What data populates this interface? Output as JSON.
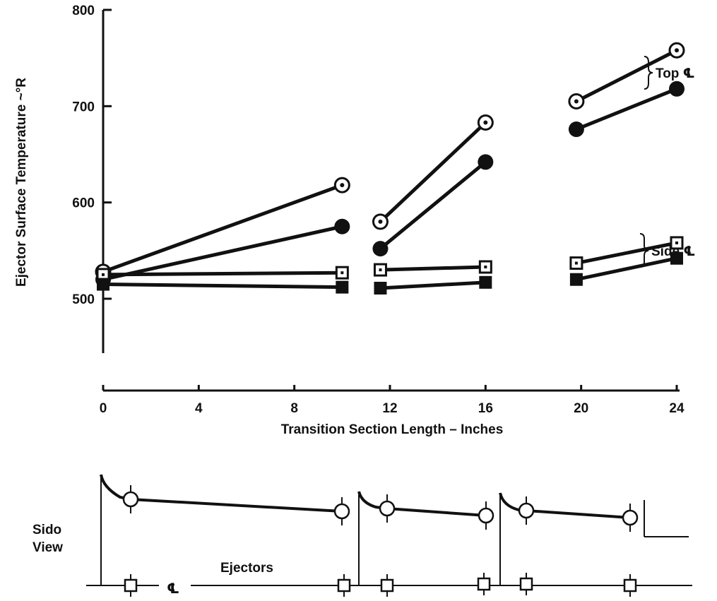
{
  "chart_data": {
    "type": "line",
    "xlabel": "Transition Section Length  – Inches",
    "ylabel": "Ejector Surface Temperature ~°R",
    "xlim": [
      0,
      24
    ],
    "ylim": [
      500,
      800
    ],
    "x_ticks": [
      "0",
      "4",
      "8",
      "12",
      "16",
      "20",
      "24"
    ],
    "y_ticks": [
      "500",
      "600",
      "700",
      "800"
    ],
    "group_labels": [
      "Top ℄",
      "Side ℄"
    ],
    "series": [
      {
        "group": "top",
        "marker": "open-circle",
        "segments": [
          [
            [
              0,
              528
            ],
            [
              10,
              618
            ]
          ],
          [
            [
              11.6,
              580
            ],
            [
              16,
              683
            ]
          ],
          [
            [
              19.8,
              705
            ],
            [
              24,
              758
            ]
          ]
        ]
      },
      {
        "group": "top",
        "marker": "filled-circle",
        "segments": [
          [
            [
              0,
              520
            ],
            [
              10,
              575
            ]
          ],
          [
            [
              11.6,
              552
            ],
            [
              16,
              642
            ]
          ],
          [
            [
              19.8,
              676
            ],
            [
              24,
              718
            ]
          ]
        ]
      },
      {
        "group": "side",
        "marker": "open-square",
        "segments": [
          [
            [
              0,
              525
            ],
            [
              10,
              527
            ]
          ],
          [
            [
              11.6,
              530
            ],
            [
              16,
              533
            ]
          ],
          [
            [
              19.8,
              537
            ],
            [
              24,
              558
            ]
          ]
        ]
      },
      {
        "group": "side",
        "marker": "filled-square",
        "segments": [
          [
            [
              0,
              515
            ],
            [
              10,
              512
            ]
          ],
          [
            [
              11.6,
              511
            ],
            [
              16,
              517
            ]
          ],
          [
            [
              19.8,
              520
            ],
            [
              24,
              542
            ]
          ]
        ]
      }
    ]
  },
  "side_view": {
    "title_line1": "Sido",
    "title_line2": "View",
    "ejectors_label": "Ejectors",
    "centerline_label": "℄"
  }
}
